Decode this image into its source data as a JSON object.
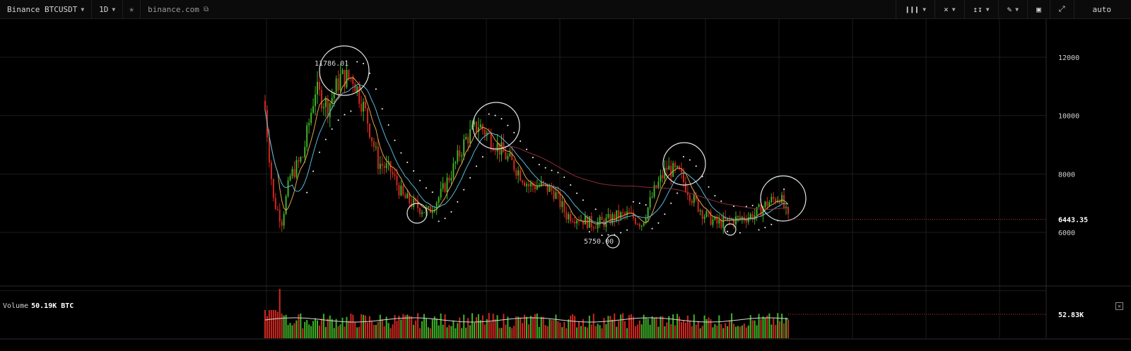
{
  "toolbar": {
    "symbol": "Binance BTCUSDT",
    "interval": "1D",
    "site": "binance.com",
    "right_icons": [
      "candles-icon",
      "indicators-icon",
      "compare-icon",
      "draw-icon",
      "screenshot-icon",
      "fullscreen-icon"
    ],
    "scale_mode": "auto"
  },
  "chart_data": {
    "type": "candlestick",
    "symbol": "BTCUSDT",
    "interval": "1D",
    "ylim": [
      4000,
      13000
    ],
    "y_ticks": [
      6000,
      8000,
      10000,
      12000
    ],
    "last_price": "6443.35",
    "annotations": {
      "high": "11786.01",
      "low": "5750.00"
    },
    "circled_points": [
      {
        "price": 11600
      },
      {
        "price": 9700
      },
      {
        "price": 8400
      },
      {
        "price": 6900
      },
      {
        "price": 6850
      },
      {
        "price": 6150
      },
      {
        "price": 5750
      }
    ],
    "key_closes": [
      {
        "i": 0,
        "v": 10200
      },
      {
        "i": 4,
        "v": 7100
      },
      {
        "i": 8,
        "v": 6400
      },
      {
        "i": 12,
        "v": 7900
      },
      {
        "i": 18,
        "v": 8600
      },
      {
        "i": 24,
        "v": 10900
      },
      {
        "i": 30,
        "v": 10300
      },
      {
        "i": 36,
        "v": 11300
      },
      {
        "i": 42,
        "v": 11300
      },
      {
        "i": 48,
        "v": 10100
      },
      {
        "i": 54,
        "v": 8400
      },
      {
        "i": 60,
        "v": 8100
      },
      {
        "i": 66,
        "v": 7200
      },
      {
        "i": 72,
        "v": 6900
      },
      {
        "i": 78,
        "v": 6700
      },
      {
        "i": 84,
        "v": 7300
      },
      {
        "i": 90,
        "v": 8200
      },
      {
        "i": 96,
        "v": 9200
      },
      {
        "i": 102,
        "v": 9700
      },
      {
        "i": 108,
        "v": 9200
      },
      {
        "i": 114,
        "v": 8700
      },
      {
        "i": 120,
        "v": 8200
      },
      {
        "i": 126,
        "v": 7600
      },
      {
        "i": 132,
        "v": 7600
      },
      {
        "i": 138,
        "v": 7400
      },
      {
        "i": 144,
        "v": 6600
      },
      {
        "i": 150,
        "v": 6500
      },
      {
        "i": 156,
        "v": 6300
      },
      {
        "i": 162,
        "v": 6350
      },
      {
        "i": 168,
        "v": 6550
      },
      {
        "i": 174,
        "v": 6600
      },
      {
        "i": 180,
        "v": 6300
      },
      {
        "i": 186,
        "v": 7400
      },
      {
        "i": 192,
        "v": 8200
      },
      {
        "i": 198,
        "v": 8000
      },
      {
        "i": 204,
        "v": 7200
      },
      {
        "i": 210,
        "v": 6600
      },
      {
        "i": 216,
        "v": 6300
      },
      {
        "i": 222,
        "v": 6400
      },
      {
        "i": 228,
        "v": 6500
      },
      {
        "i": 234,
        "v": 6600
      },
      {
        "i": 240,
        "v": 7000
      },
      {
        "i": 246,
        "v": 7250
      },
      {
        "i": 250,
        "v": 6443.35
      }
    ],
    "volume": {
      "label": "Volume",
      "current": "50.19K BTC",
      "last_tick": "52.83K"
    }
  }
}
